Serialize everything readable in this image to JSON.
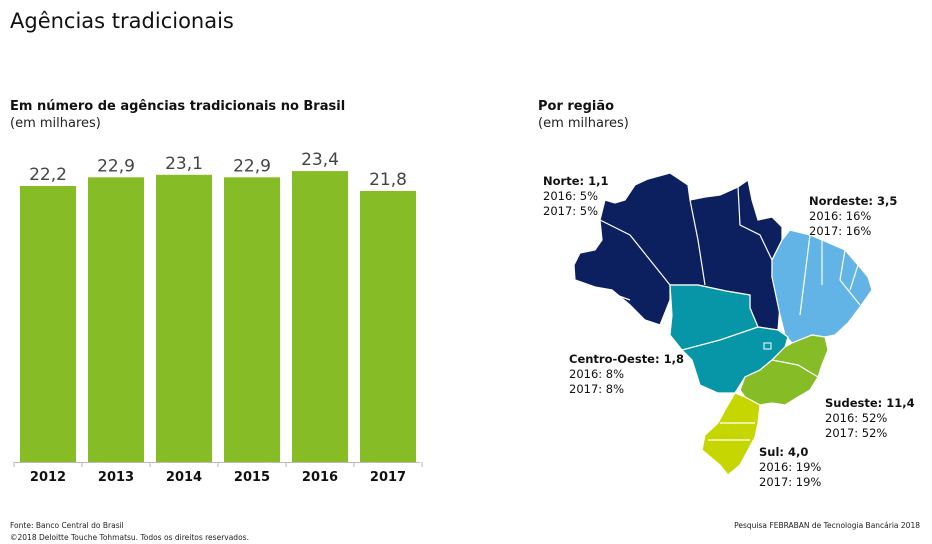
{
  "page": {
    "title": "Agências tradicionais"
  },
  "bar_section": {
    "title": "Em número de agências tradicionais no Brasil",
    "subtitle": "(em milhares)"
  },
  "map_section": {
    "title": "Por região",
    "subtitle": "(em milhares)",
    "regions": [
      {
        "name": "Norte: 1,1",
        "line1": "2016: 5%",
        "line2": "2017: 5%",
        "color": "#0c2060"
      },
      {
        "name": "Nordeste: 3,5",
        "line1": "2016: 16%",
        "line2": "2017: 16%",
        "color": "#62b4e6"
      },
      {
        "name": "Centro-Oeste: 1,8",
        "line1": "2016: 8%",
        "line2": "2017: 8%",
        "color": "#0796a8"
      },
      {
        "name": "Sudeste: 11,4",
        "line1": "2016: 52%",
        "line2": "2017: 52%",
        "color": "#86bc25"
      },
      {
        "name": "Sul: 4,0",
        "line1": "2016: 19%",
        "line2": "2017: 19%",
        "color": "#c6d600"
      }
    ]
  },
  "chart_data": {
    "type": "bar",
    "title": "Em número de agências tradicionais no Brasil",
    "ylabel": "(em milhares)",
    "categories": [
      "2012",
      "2013",
      "2014",
      "2015",
      "2016",
      "2017"
    ],
    "values": [
      22.2,
      22.9,
      23.1,
      22.9,
      23.4,
      21.8
    ],
    "value_labels": [
      "22,2",
      "22,9",
      "23,1",
      "22,9",
      "23,4",
      "21,8"
    ],
    "ylim": [
      0,
      25.9
    ],
    "grid": false,
    "bar_color": "#86bc25"
  },
  "footer": {
    "source": "Fonte: Banco Central do Brasil",
    "copyright": "©2018 Deloitte Touche Tohmatsu. Todos os direitos reservados.",
    "survey": "Pesquisa FEBRABAN de Tecnologia Bancária 2018"
  }
}
